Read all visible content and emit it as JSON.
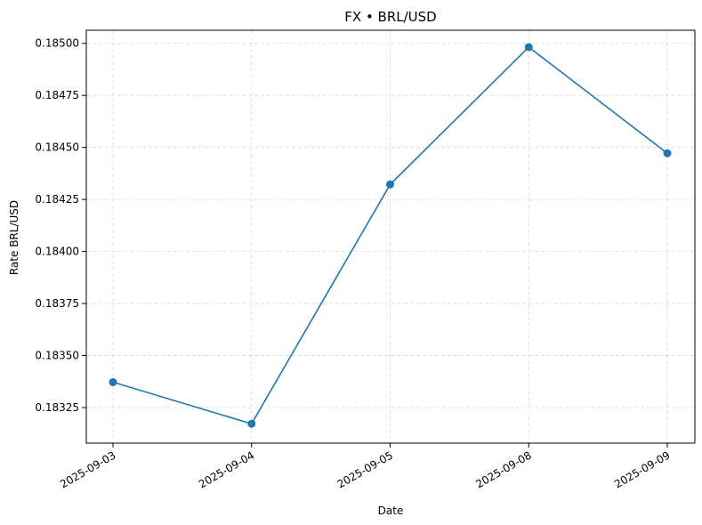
{
  "chart_data": {
    "type": "line",
    "title": "FX • BRL/USD",
    "xlabel": "Date",
    "ylabel": "Rate BRL/USD",
    "categories": [
      "2025-09-03",
      "2025-09-04",
      "2025-09-05",
      "2025-09-08",
      "2025-09-09"
    ],
    "series": [
      {
        "values": [
          0.183372,
          0.183172,
          0.184322,
          0.184982,
          0.184472
        ]
      }
    ],
    "yticks": [
      "0.18325",
      "0.18350",
      "0.18375",
      "0.18400",
      "0.18425",
      "0.18450",
      "0.18475",
      "0.18500"
    ],
    "ylim": [
      0.183079,
      0.185063
    ],
    "grid": true,
    "legend": "none",
    "colors": {
      "series": "#1f77b4",
      "grid": "#d9d9d9",
      "axis": "#000000"
    }
  }
}
